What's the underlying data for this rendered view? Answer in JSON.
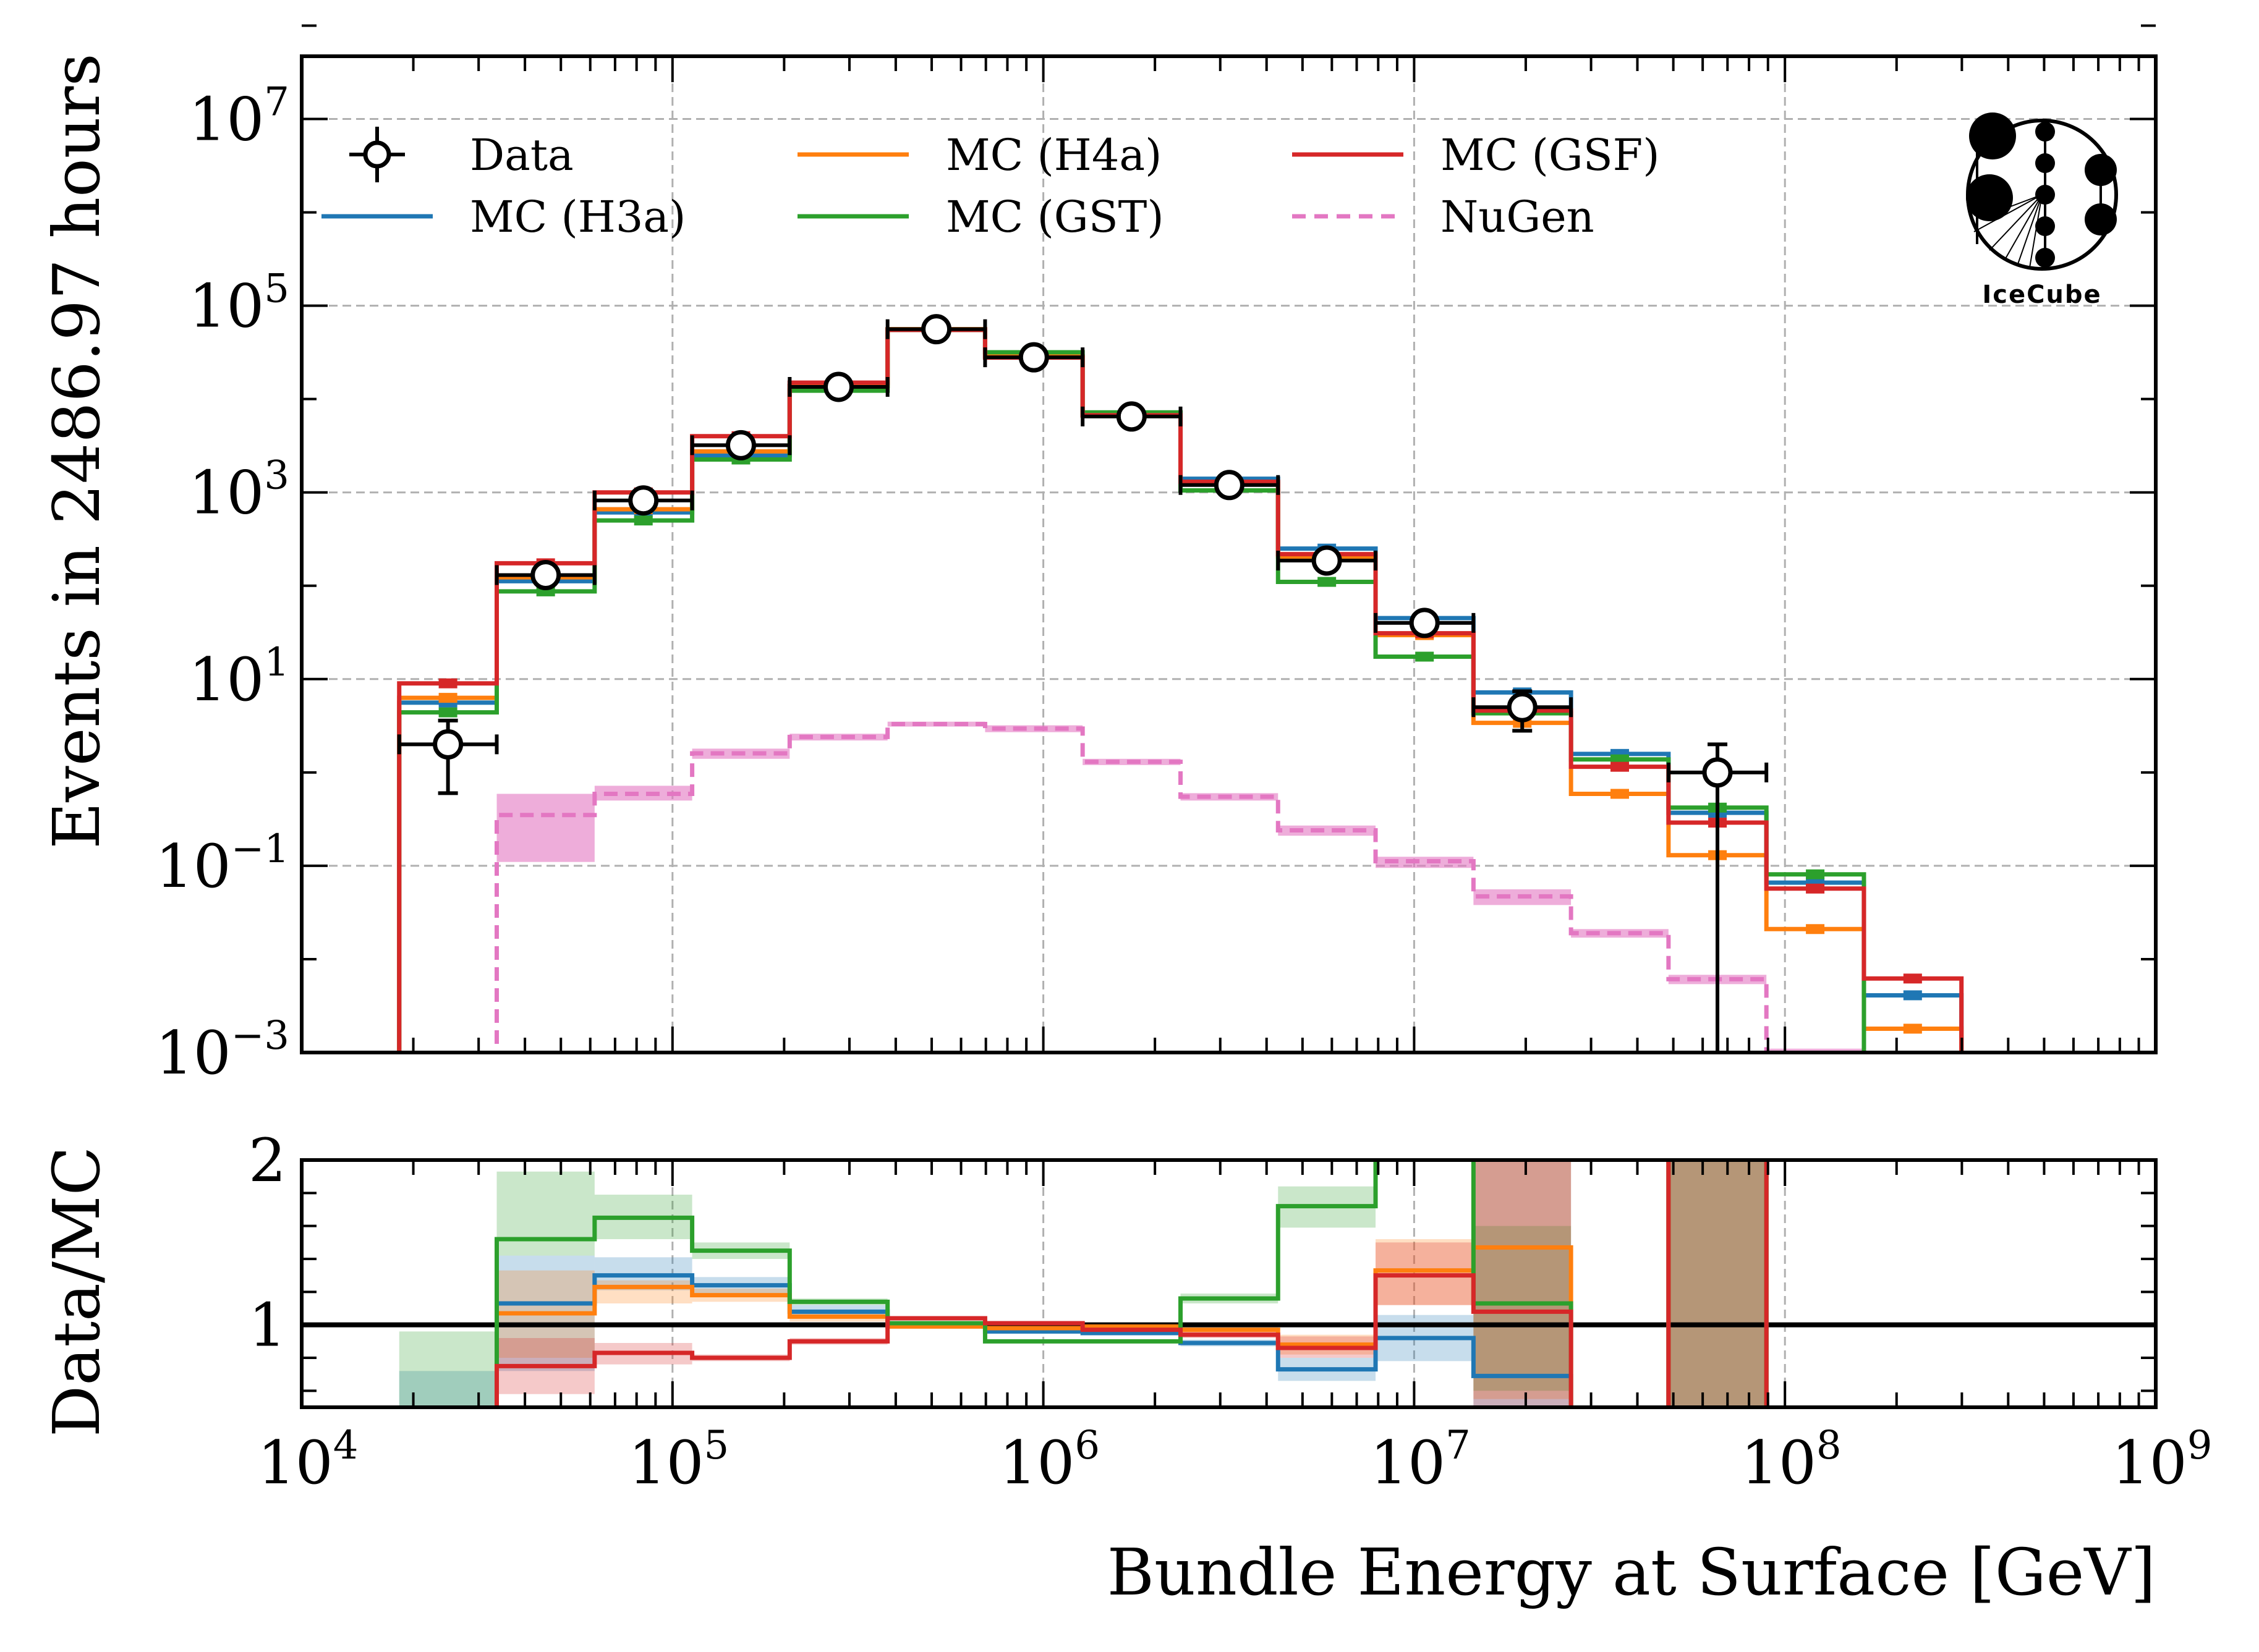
{
  "chart_data": [
    {
      "type": "line",
      "panel": "main",
      "style": "step-histogram",
      "title": "",
      "xlabel": "Bundle Energy at Surface [GeV]",
      "ylabel": "Events in 2486.97 hours",
      "xscale": "log",
      "yscale": "log",
      "xlim": [
        10000,
        1000000000
      ],
      "ylim": [
        0.001,
        47000000
      ],
      "grid": true,
      "legend_position": "top-left, 3 columns",
      "x_ticks": [
        {
          "base": "10",
          "exp": "4"
        },
        {
          "base": "10",
          "exp": "5"
        },
        {
          "base": "10",
          "exp": "6"
        },
        {
          "base": "10",
          "exp": "7"
        },
        {
          "base": "10",
          "exp": "8"
        },
        {
          "base": "10",
          "exp": "9"
        }
      ],
      "y_ticks": [
        {
          "base": "10",
          "exp": "−3",
          "value": 0.001
        },
        {
          "base": "10",
          "exp": "−1",
          "value": 0.1
        },
        {
          "base": "10",
          "exp": "1",
          "value": 10
        },
        {
          "base": "10",
          "exp": "3",
          "value": 1000
        },
        {
          "base": "10",
          "exp": "5",
          "value": 100000
        },
        {
          "base": "10",
          "exp": "7",
          "value": 10000000
        }
      ],
      "bin_edges_log10": [
        4.263,
        4.526,
        4.79,
        5.053,
        5.316,
        5.58,
        5.843,
        6.106,
        6.37,
        6.633,
        6.896,
        7.16,
        7.423,
        7.686,
        7.95,
        8.213,
        8.476
      ],
      "data": {
        "name": "Data",
        "color": "#000000",
        "values": [
          2.0,
          130,
          820,
          3200,
          13500,
          56000,
          28000,
          6500,
          1200,
          186,
          40,
          5.0,
          null,
          1.0,
          null,
          null
        ],
        "err_low": [
          1.4,
          25,
          60,
          120,
          250,
          500,
          350,
          170,
          70,
          25,
          7,
          2.2,
          null,
          1.0,
          null,
          null
        ],
        "err_high": [
          1.6,
          30,
          60,
          120,
          250,
          500,
          350,
          170,
          70,
          25,
          7,
          2.4,
          null,
          1.0,
          null,
          null
        ]
      },
      "series": [
        {
          "name": "MC (H3a)",
          "color": "#1f77b4",
          "values": [
            5.6,
            112,
            610,
            2500,
            13800,
            56000,
            28500,
            6800,
            1400,
            250,
            45,
            7.2,
            1.58,
            0.37,
            0.066,
            0.0041
          ]
        },
        {
          "name": "MC (H4a)",
          "color": "#ff7f0e",
          "values": [
            6.3,
            123,
            660,
            2750,
            13800,
            56000,
            28700,
            6600,
            1250,
            205,
            29.6,
            3.4,
            0.59,
            0.13,
            0.021,
            0.0018
          ]
        },
        {
          "name": "MC (GST)",
          "color": "#2ca02c",
          "values": [
            4.4,
            87,
            500,
            2250,
            12300,
            55000,
            31700,
            7200,
            1050,
            110,
            17.4,
            4.3,
            1.38,
            0.42,
            0.081,
            null
          ]
        },
        {
          "name": "MC (GSF)",
          "color": "#d62728",
          "values": [
            9.0,
            174,
            1000,
            4000,
            15000,
            55000,
            27800,
            6700,
            1300,
            218,
            31,
            4.6,
            1.15,
            0.29,
            0.057,
            0.0062
          ]
        },
        {
          "name": "NuGen",
          "color": "#e377c2",
          "linestyle": "dashed",
          "values": [
            null,
            0.35,
            0.59,
            1.6,
            2.4,
            3.3,
            2.95,
            1.3,
            0.55,
            0.24,
            0.112,
            0.047,
            0.019,
            0.0061,
            0.0009,
            null
          ],
          "band_low": [
            null,
            0.11,
            0.5,
            1.4,
            2.2,
            3.1,
            2.7,
            1.2,
            0.5,
            0.21,
            0.095,
            0.038,
            0.017,
            0.0054,
            0.0008,
            null
          ],
          "band_high": [
            null,
            0.59,
            0.72,
            1.8,
            2.6,
            3.5,
            3.2,
            1.4,
            0.6,
            0.27,
            0.125,
            0.056,
            0.021,
            0.0068,
            0.0011,
            null
          ]
        }
      ]
    },
    {
      "type": "line",
      "panel": "ratio",
      "style": "step-histogram",
      "xlabel": "Bundle Energy at Surface [GeV]",
      "ylabel": "Data/MC",
      "xscale": "log",
      "xlim": [
        10000,
        1000000000
      ],
      "ylim": [
        0.5,
        2
      ],
      "y_ticks": [
        {
          "label": "1",
          "value": 1
        },
        {
          "label": "2",
          "value": 2
        }
      ],
      "reference_line": 1,
      "series": [
        {
          "name": "MC (H3a)",
          "color": "#1f77b4",
          "values": [
            0.36,
            1.13,
            1.3,
            1.24,
            1.08,
            1.0,
            0.96,
            0.95,
            0.89,
            0.73,
            0.92,
            0.69,
            null,
            2.7,
            null,
            null
          ],
          "band_low": [
            0.5,
            0.72,
            1.21,
            1.19,
            1.04,
            0.99,
            0.95,
            0.94,
            0.87,
            0.66,
            0.78,
            0.5,
            null,
            0.5,
            null,
            null
          ],
          "band_high": [
            0.72,
            1.42,
            1.41,
            1.29,
            1.12,
            1.01,
            0.97,
            0.96,
            0.91,
            0.8,
            1.06,
            2.0,
            null,
            2.0,
            null,
            null
          ]
        },
        {
          "name": "MC (H4a)",
          "color": "#ff7f0e",
          "values": [
            0.32,
            1.07,
            1.23,
            1.18,
            1.05,
            0.99,
            0.98,
            0.99,
            0.97,
            0.88,
            1.33,
            1.47,
            null,
            7.7,
            null,
            null
          ],
          "band_low": [
            0.5,
            0.8,
            1.13,
            1.14,
            1.02,
            0.98,
            0.97,
            0.98,
            0.95,
            0.82,
            1.12,
            0.55,
            null,
            0.5,
            null,
            null
          ],
          "band_high": [
            0.5,
            1.33,
            1.27,
            1.22,
            1.08,
            1.0,
            0.99,
            1.0,
            0.99,
            0.94,
            1.52,
            2.0,
            null,
            2.0,
            null,
            null
          ]
        },
        {
          "name": "MC (GST)",
          "color": "#2ca02c",
          "values": [
            0.45,
            1.52,
            1.65,
            1.45,
            1.14,
            1.01,
            0.9,
            0.9,
            1.16,
            1.72,
            2.3,
            1.13,
            null,
            2.4,
            null,
            null
          ],
          "band_low": [
            0.5,
            1.42,
            1.52,
            1.4,
            1.12,
            1.0,
            0.89,
            0.89,
            1.13,
            1.59,
            2.0,
            0.6,
            null,
            0.5,
            null,
            null
          ],
          "band_high": [
            0.96,
            1.93,
            1.79,
            1.5,
            1.16,
            1.02,
            0.91,
            0.91,
            1.19,
            1.84,
            2.0,
            1.6,
            null,
            2.0,
            null,
            null
          ]
        },
        {
          "name": "MC (GSF)",
          "color": "#d62728",
          "values": [
            0.22,
            0.75,
            0.83,
            0.8,
            0.9,
            1.04,
            1.01,
            0.97,
            0.94,
            0.86,
            1.3,
            1.08,
            null,
            3.4,
            null,
            null
          ],
          "band_low": [
            0.5,
            0.58,
            0.76,
            0.78,
            0.88,
            1.03,
            1.0,
            0.96,
            0.92,
            0.8,
            1.12,
            0.5,
            null,
            0.5,
            null,
            null
          ],
          "band_high": [
            0.5,
            0.92,
            0.89,
            0.82,
            0.92,
            1.05,
            1.02,
            0.98,
            0.96,
            0.93,
            1.5,
            2.0,
            null,
            2.0,
            null,
            null
          ]
        }
      ]
    }
  ],
  "legend": {
    "items": [
      {
        "label": "Data",
        "kind": "marker"
      },
      {
        "label": "MC (H3a)",
        "kind": "line",
        "color": "#1f77b4"
      },
      {
        "label": "MC (H4a)",
        "kind": "line",
        "color": "#ff7f0e"
      },
      {
        "label": "MC (GST)",
        "kind": "line",
        "color": "#2ca02c"
      },
      {
        "label": "MC (GSF)",
        "kind": "line",
        "color": "#d62728"
      },
      {
        "label": "NuGen",
        "kind": "dashed",
        "color": "#e377c2"
      }
    ]
  },
  "logo": {
    "text": "IceCube"
  },
  "labels": {
    "ylabel_main": "Events in 2486.97 hours",
    "ylabel_ratio": "Data/MC",
    "xlabel": "Bundle Energy at Surface [GeV]"
  }
}
